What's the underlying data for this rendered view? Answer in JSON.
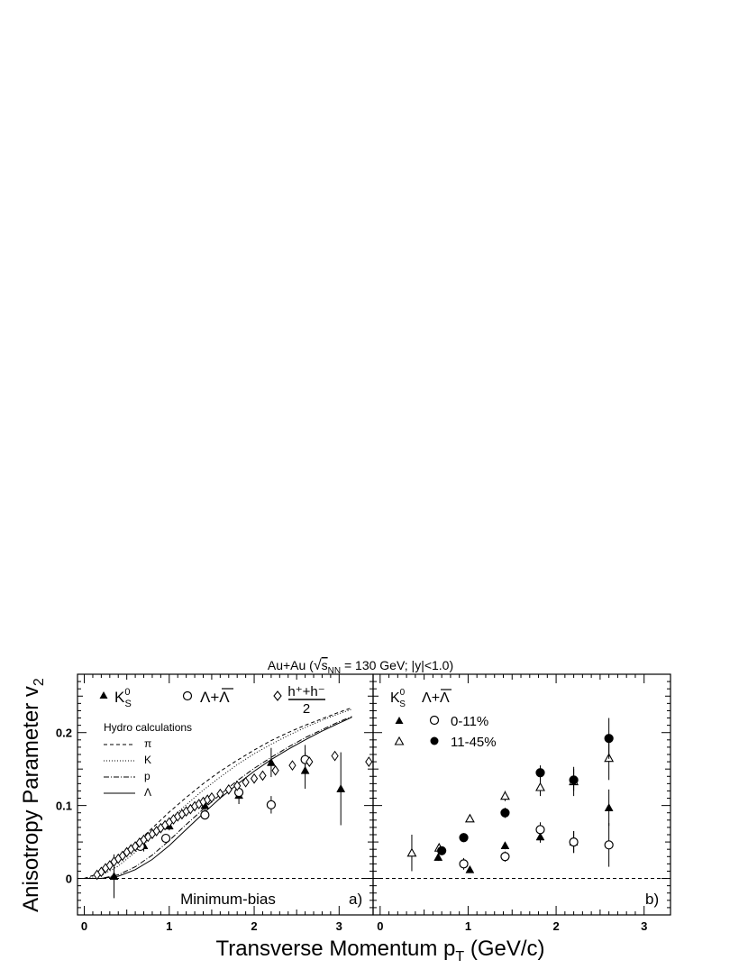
{
  "figure": {
    "title_prefix": "Au+Au (",
    "title_s": "s",
    "title_sub": "NN",
    "title_suffix": " = 130 GeV; |y|<1.0)",
    "ylabel": "Anisotropy Parameter v",
    "ylabel_sub": "2",
    "xlabel": "Transverse Momentum p",
    "xlabel_sub": "T",
    "xlabel_suffix": " (GeV/c)"
  },
  "chart_data": [
    {
      "type": "scatter",
      "panel": "a)",
      "annotation": "Minimum-bias",
      "xlim": [
        -0.08,
        3.4
      ],
      "ylim": [
        -0.05,
        0.28
      ],
      "xticks": [
        "0",
        "1",
        "2",
        "3"
      ],
      "yticks": [
        "0",
        "0.1",
        "0.2"
      ],
      "legend": {
        "k0s_main": "K",
        "k0s_sup": "0",
        "k0s_sub": "S",
        "lambda": "Λ+Λ",
        "hadrons_num": "h⁺+h⁻",
        "hadrons_den": "2",
        "hydro_title": "Hydro calculations",
        "hydro_items": [
          "π",
          "K",
          "p",
          "Λ"
        ]
      },
      "series": [
        {
          "name": "K0S",
          "marker": "filled-triangle",
          "x": [
            0.35,
            0.7,
            1.0,
            1.42,
            1.82,
            2.2,
            2.6,
            3.02
          ],
          "y": [
            0.003,
            0.045,
            0.072,
            0.1,
            0.114,
            0.159,
            0.148,
            0.123
          ],
          "err": [
            0.03,
            0.008,
            0.006,
            0.007,
            0.012,
            0.02,
            0.025,
            0.05
          ]
        },
        {
          "name": "Λ+Λbar",
          "marker": "open-circle",
          "x": [
            0.66,
            0.96,
            1.42,
            1.82,
            2.2,
            2.6
          ],
          "y": [
            0.044,
            0.055,
            0.087,
            0.118,
            0.101,
            0.163
          ],
          "err": [
            0.006,
            0.004,
            0.005,
            0.008,
            0.012,
            0.02
          ]
        },
        {
          "name": "(h++h-)/2",
          "marker": "open-diamond",
          "x": [
            0.15,
            0.2,
            0.25,
            0.3,
            0.35,
            0.4,
            0.45,
            0.5,
            0.55,
            0.6,
            0.65,
            0.7,
            0.75,
            0.8,
            0.85,
            0.9,
            0.95,
            1.0,
            1.05,
            1.1,
            1.15,
            1.2,
            1.25,
            1.3,
            1.35,
            1.4,
            1.45,
            1.5,
            1.6,
            1.7,
            1.8,
            1.9,
            2.0,
            2.1,
            2.25,
            2.45,
            2.65,
            2.95,
            3.35
          ],
          "y": [
            0.005,
            0.009,
            0.014,
            0.018,
            0.023,
            0.027,
            0.031,
            0.036,
            0.04,
            0.044,
            0.049,
            0.053,
            0.057,
            0.061,
            0.065,
            0.069,
            0.073,
            0.077,
            0.081,
            0.085,
            0.088,
            0.092,
            0.095,
            0.099,
            0.102,
            0.105,
            0.108,
            0.111,
            0.116,
            0.122,
            0.127,
            0.132,
            0.137,
            0.141,
            0.148,
            0.155,
            0.16,
            0.168,
            0.16
          ]
        }
      ],
      "hydro_curves": [
        {
          "name": "π",
          "style": "dashed",
          "x": [
            0,
            0.2,
            0.4,
            0.6,
            0.8,
            1.0,
            1.2,
            1.4,
            1.6,
            1.8,
            2.0,
            2.2,
            2.4,
            2.6,
            2.8,
            3.0,
            3.15
          ],
          "y": [
            0,
            0.008,
            0.025,
            0.047,
            0.069,
            0.091,
            0.111,
            0.13,
            0.147,
            0.162,
            0.176,
            0.189,
            0.2,
            0.21,
            0.219,
            0.228,
            0.234
          ]
        },
        {
          "name": "K",
          "style": "dotted",
          "x": [
            0,
            0.2,
            0.4,
            0.6,
            0.8,
            1.0,
            1.2,
            1.4,
            1.6,
            1.8,
            2.0,
            2.2,
            2.4,
            2.6,
            2.8,
            3.0,
            3.15
          ],
          "y": [
            0,
            0.004,
            0.017,
            0.036,
            0.058,
            0.08,
            0.101,
            0.121,
            0.139,
            0.156,
            0.171,
            0.184,
            0.196,
            0.207,
            0.217,
            0.226,
            0.232
          ]
        },
        {
          "name": "p",
          "style": "dashdot",
          "x": [
            0,
            0.2,
            0.4,
            0.6,
            0.8,
            1.0,
            1.2,
            1.4,
            1.6,
            1.8,
            2.0,
            2.2,
            2.4,
            2.6,
            2.8,
            3.0,
            3.15
          ],
          "y": [
            0,
            0.0,
            0.005,
            0.016,
            0.032,
            0.052,
            0.074,
            0.095,
            0.115,
            0.134,
            0.151,
            0.166,
            0.18,
            0.193,
            0.204,
            0.215,
            0.222
          ]
        },
        {
          "name": "Λ",
          "style": "solid",
          "x": [
            0,
            0.2,
            0.4,
            0.6,
            0.8,
            1.0,
            1.2,
            1.4,
            1.6,
            1.8,
            2.0,
            2.2,
            2.4,
            2.6,
            2.8,
            3.0,
            3.15
          ],
          "y": [
            0,
            0.0,
            0.003,
            0.012,
            0.026,
            0.045,
            0.067,
            0.089,
            0.11,
            0.129,
            0.147,
            0.163,
            0.177,
            0.19,
            0.202,
            0.213,
            0.221
          ]
        }
      ]
    },
    {
      "type": "scatter",
      "panel": "b)",
      "xlim": [
        -0.08,
        3.3
      ],
      "ylim": [
        -0.05,
        0.28
      ],
      "xticks": [
        "0",
        "1",
        "2",
        "3"
      ],
      "legend": {
        "k0s_main": "K",
        "k0s_sup": "0",
        "k0s_sub": "S",
        "lambda": "Λ+Λ",
        "row1": "0-11%",
        "row2": "11-45%"
      },
      "series": [
        {
          "name": "K0S 0-11%",
          "marker": "filled-triangle",
          "x": [
            0.66,
            1.02,
            1.42,
            1.82,
            2.2,
            2.6
          ],
          "y": [
            0.029,
            0.012,
            0.045,
            0.057,
            0.05,
            0.097
          ],
          "err": [
            0.005,
            0.004,
            0.005,
            0.008,
            0.015,
            0.025
          ]
        },
        {
          "name": "Λ+Λbar 0-11%",
          "marker": "open-circle",
          "x": [
            0.95,
            1.42,
            1.82,
            2.2,
            2.6
          ],
          "y": [
            0.02,
            0.03,
            0.067,
            0.05,
            0.046
          ],
          "err": [
            0.008,
            0.007,
            0.01,
            0.015,
            0.03
          ]
        },
        {
          "name": "K0S 11-45%",
          "marker": "open-triangle",
          "x": [
            0.36,
            0.67,
            1.02,
            1.42,
            1.82,
            2.2,
            2.6
          ],
          "y": [
            0.035,
            0.042,
            0.082,
            0.113,
            0.125,
            0.133,
            0.165
          ],
          "err": [
            0.025,
            0.005,
            0.004,
            0.007,
            0.012,
            0.02,
            0.03
          ]
        },
        {
          "name": "Λ+Λbar 11-45%",
          "marker": "filled-circle",
          "x": [
            0.7,
            0.95,
            1.42,
            1.82,
            2.2,
            2.6
          ],
          "y": [
            0.038,
            0.056,
            0.09,
            0.145,
            0.135,
            0.192
          ],
          "err": [
            0.005,
            0.006,
            0.007,
            0.01,
            0.015,
            0.028
          ]
        }
      ]
    }
  ]
}
